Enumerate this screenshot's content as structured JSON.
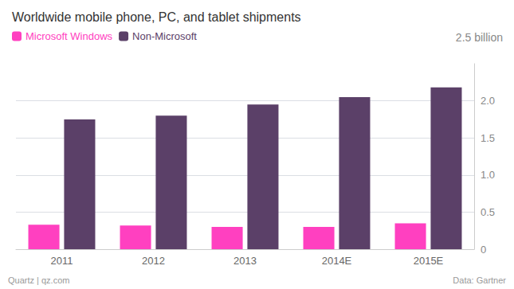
{
  "chart_data": {
    "type": "bar",
    "title": "Worldwide mobile phone, PC, and tablet shipments",
    "categories": [
      "2011",
      "2012",
      "2013",
      "2014E",
      "2015E"
    ],
    "series": [
      {
        "name": "Microsoft Windows",
        "color": "#FF40C0",
        "values": [
          0.33,
          0.32,
          0.3,
          0.3,
          0.35
        ]
      },
      {
        "name": "Non-Microsoft",
        "color": "#5B4068",
        "values": [
          1.75,
          1.8,
          1.95,
          2.05,
          2.18
        ]
      }
    ],
    "ylim": [
      0,
      2.5
    ],
    "yticks": [
      0,
      0.5,
      {
        "value": 1.0,
        "label": "1.0"
      },
      1.5,
      {
        "value": 2.0,
        "label": "2.0"
      }
    ],
    "grid": true,
    "legend": "top-left",
    "annotations": [
      "2.5 billion",
      "Quartz | qz.com",
      "Data: Gartner"
    ]
  }
}
